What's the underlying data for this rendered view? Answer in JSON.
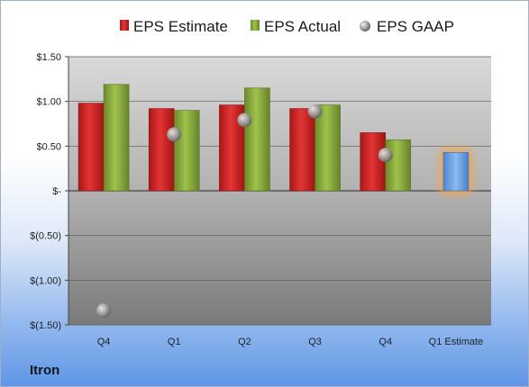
{
  "company": "Itron",
  "colors": {
    "estimate": "#d42a2a",
    "actual": "#8fb33f",
    "gaap": "#9a9a9a",
    "forecast": "#6fa3e0",
    "forecast_glow": "#f5a742"
  },
  "chart_data": {
    "type": "bar",
    "title": "",
    "xlabel": "",
    "ylabel": "",
    "ylim": [
      -1.5,
      1.5
    ],
    "yticks": [
      1.5,
      1.0,
      0.5,
      0,
      -0.5,
      -1.0,
      -1.5
    ],
    "ytick_labels": [
      "$1.50",
      "$1.00",
      "$0.50",
      "$-",
      "$(0.50)",
      "$(1.00)",
      "$(1.50)"
    ],
    "categories": [
      "Q4",
      "Q1",
      "Q2",
      "Q3",
      "Q4",
      "Q1 Estimate"
    ],
    "grid": true,
    "legend_position": "top",
    "series": [
      {
        "name": "EPS Estimate",
        "kind": "bar",
        "values": [
          0.98,
          0.92,
          0.96,
          0.92,
          0.65,
          null
        ]
      },
      {
        "name": "EPS Actual",
        "kind": "bar",
        "values": [
          1.19,
          0.9,
          1.15,
          0.96,
          0.57,
          null
        ]
      },
      {
        "name": "EPS GAAP",
        "kind": "marker",
        "values": [
          -1.34,
          0.63,
          0.79,
          0.89,
          0.4,
          null
        ]
      }
    ],
    "forecast": {
      "category": "Q1 Estimate",
      "value": 0.43
    }
  }
}
